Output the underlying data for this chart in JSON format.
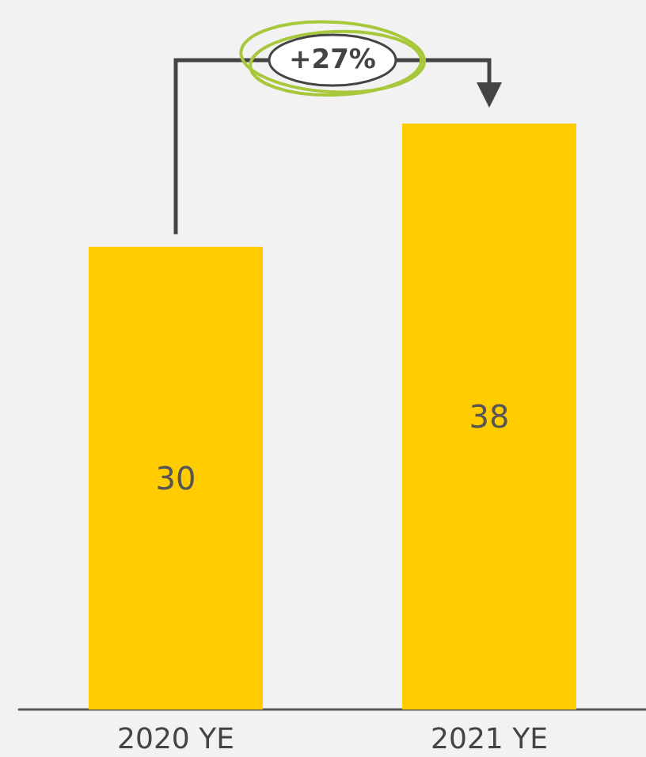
{
  "chart_data": {
    "type": "bar",
    "categories": [
      "2020 YE",
      "2021 YE"
    ],
    "values": [
      30,
      38
    ],
    "color": "#ffcc00",
    "data_labels": true,
    "annotations": [
      "+27%"
    ]
  }
}
